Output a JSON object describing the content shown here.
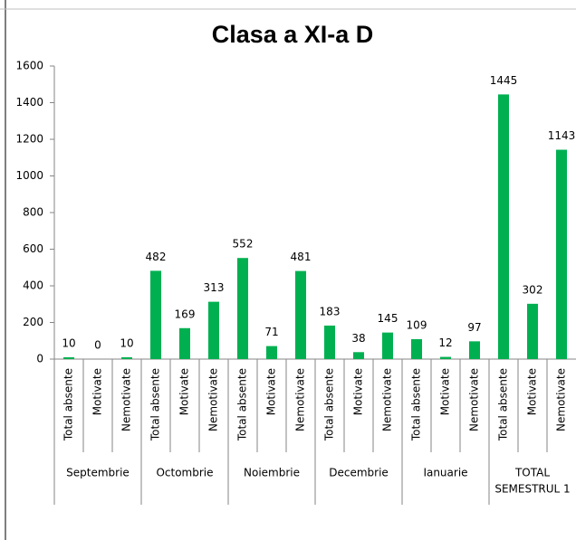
{
  "chart_data": {
    "type": "bar",
    "title": "Clasa a XI-a D",
    "categories": [
      "Total absente",
      "Motivate",
      "Nemotivate",
      "Total absente",
      "Motivate",
      "Nemotivate",
      "Total absente",
      "Motivate",
      "Nemotivate",
      "Total absente",
      "Motivate",
      "Nemotivate",
      "Total absente",
      "Motivate",
      "Nemotivate",
      "Total absente",
      "Motivate",
      "Nemotivate"
    ],
    "groups": [
      [
        "Septembrie"
      ],
      [
        "Octombrie"
      ],
      [
        "Noiembrie"
      ],
      [
        "Decembrie"
      ],
      [
        "Ianuarie"
      ],
      [
        "TOTAL",
        "SEMESTRUL 1"
      ]
    ],
    "values": [
      10,
      0,
      10,
      482,
      169,
      313,
      552,
      71,
      481,
      183,
      38,
      145,
      109,
      12,
      97,
      1445,
      302,
      1143
    ],
    "color": "#00b050",
    "ylim": [
      0,
      1600
    ],
    "yticks": [
      0,
      200,
      400,
      600,
      800,
      1000,
      1200,
      1400,
      1600
    ],
    "grid": false
  }
}
